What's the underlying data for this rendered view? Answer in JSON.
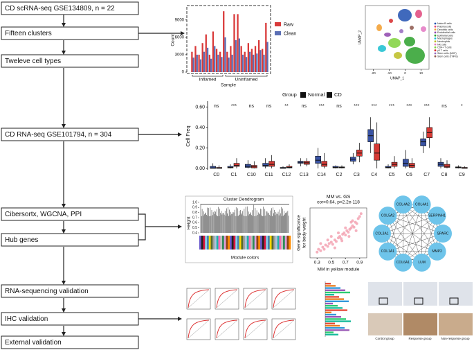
{
  "flowchart": {
    "steps": [
      "CD scRNA-seq GSE134809, n = 22",
      "Fifteen clusters",
      "Tweleve cell types",
      "CD RNA-seq GSE101794, n = 304",
      "Cibersortx, WGCNA, PPI",
      "Hub genes",
      "RNA-sequencing validation",
      "IHC validation",
      "External validation"
    ]
  },
  "chart_data": [
    {
      "type": "bar",
      "xlabel": "Sample",
      "ylabel": "Count",
      "groups": [
        "Inflamed",
        "Uninflamed"
      ],
      "ylim": [
        0,
        11000
      ],
      "yticks": [
        0,
        3000,
        6000,
        9000
      ],
      "series": [
        {
          "name": "Raw",
          "color": "#d93a3a",
          "values": [
            3500,
            4500,
            3000,
            5000,
            6500,
            3000,
            7000,
            4000,
            3500,
            10500,
            3500,
            4500,
            10000,
            10000,
            4500,
            3500,
            5000,
            4000,
            4500,
            5500,
            4000,
            8500
          ]
        },
        {
          "name": "Clean",
          "color": "#5b6fb5",
          "values": [
            2500,
            3000,
            2200,
            3500,
            4200,
            2300,
            4500,
            3000,
            2600,
            6000,
            2500,
            3000,
            5500,
            5800,
            3000,
            2600,
            3500,
            3000,
            3200,
            3800,
            3000,
            5200
          ]
        }
      ]
    },
    {
      "type": "umap",
      "xlabel": "UMAP_1",
      "ylabel": "UMAP_2",
      "xlim": [
        -25,
        15
      ],
      "xticks": [
        -20,
        -10,
        0,
        10
      ],
      "legend": [
        "Naive B cells",
        "Plasma cells",
        "Dendritic cells",
        "Endothelial cells",
        "Epithelial cells",
        "Macrophages",
        "Neutrophils",
        "NK cells",
        "CD4+ T cells",
        "γδ T cells",
        "Stem cells (MHF)",
        "Stem cells (TNFG)"
      ],
      "colors": [
        "#1f4fb0",
        "#e0457b",
        "#f29c2b",
        "#8e44ad",
        "#2ca02c",
        "#17becf",
        "#bcbd22",
        "#e377c2",
        "#7fd13b",
        "#d62728",
        "#9467bd",
        "#8c564b"
      ]
    },
    {
      "type": "box",
      "title": "Group",
      "ylabel": "Cell Freq",
      "ylim": [
        0,
        0.63
      ],
      "yticks": [
        {
          "value": 0,
          "label": "0.00"
        },
        {
          "value": 0.2,
          "label": "0.20"
        },
        {
          "value": 0.4,
          "label": "0.40"
        },
        {
          "value": 0.6,
          "label": "0.60"
        }
      ],
      "categories": [
        "C0",
        "C1",
        "C10",
        "C11",
        "C12",
        "C13",
        "C14",
        "C2",
        "C3",
        "C4",
        "C5",
        "C6",
        "C7",
        "C8",
        "C9"
      ],
      "significance": [
        "ns",
        "***",
        "ns",
        "ns",
        "**",
        "ns",
        "***",
        "ns",
        "***",
        "***",
        "***",
        "***",
        "***",
        "ns",
        "*"
      ],
      "series": [
        {
          "name": "Normal",
          "color": "#3953a4",
          "values": [
            [
              0,
              0,
              0.005,
              0.02,
              0.05
            ],
            [
              0,
              0.005,
              0.01,
              0.02,
              0.04
            ],
            [
              0,
              0.01,
              0.02,
              0.04,
              0.08
            ],
            [
              0,
              0.02,
              0.03,
              0.05,
              0.1
            ],
            [
              0,
              0,
              0.005,
              0.01,
              0.02
            ],
            [
              0.02,
              0.05,
              0.06,
              0.07,
              0.1
            ],
            [
              0,
              0.05,
              0.08,
              0.12,
              0.2
            ],
            [
              0,
              0.005,
              0.01,
              0.02,
              0.03
            ],
            [
              0.04,
              0.07,
              0.09,
              0.11,
              0.15
            ],
            [
              0.15,
              0.26,
              0.32,
              0.38,
              0.5
            ],
            [
              0,
              0.005,
              0.01,
              0.02,
              0.04
            ],
            [
              0,
              0.02,
              0.05,
              0.09,
              0.18
            ],
            [
              0.15,
              0.22,
              0.26,
              0.29,
              0.36
            ],
            [
              0,
              0.02,
              0.04,
              0.06,
              0.1
            ],
            [
              0,
              0.005,
              0.01,
              0.015,
              0.03
            ]
          ]
        },
        {
          "name": "CD",
          "color": "#d63a35",
          "values": [
            [
              0,
              0,
              0.003,
              0.01,
              0.03
            ],
            [
              0,
              0.02,
              0.03,
              0.05,
              0.1
            ],
            [
              0,
              0.005,
              0.015,
              0.03,
              0.07
            ],
            [
              0,
              0.02,
              0.04,
              0.07,
              0.13
            ],
            [
              0,
              0.005,
              0.01,
              0.02,
              0.04
            ],
            [
              0.02,
              0.04,
              0.055,
              0.07,
              0.1
            ],
            [
              0,
              0.02,
              0.04,
              0.07,
              0.15
            ],
            [
              0,
              0.005,
              0.01,
              0.015,
              0.03
            ],
            [
              0.06,
              0.12,
              0.15,
              0.18,
              0.25
            ],
            [
              0,
              0.08,
              0.15,
              0.24,
              0.45
            ],
            [
              0,
              0.02,
              0.04,
              0.06,
              0.12
            ],
            [
              0,
              0.01,
              0.03,
              0.05,
              0.1
            ],
            [
              0.2,
              0.3,
              0.35,
              0.4,
              0.5
            ],
            [
              0,
              0.01,
              0.02,
              0.04,
              0.08
            ],
            [
              0,
              0,
              0.005,
              0.01,
              0.02
            ]
          ]
        }
      ]
    },
    {
      "type": "dendrogram",
      "title": "Cluster Dendrogram",
      "ylabel": "Height",
      "xlabel": "Module colors",
      "ylim": [
        0.4,
        1
      ],
      "yticks": [
        0.4,
        0.5,
        0.6,
        0.7,
        0.8,
        0.9,
        {
          "value": 1,
          "label": "1.0"
        }
      ]
    },
    {
      "type": "scatter",
      "title": "MM vs. GS",
      "subtitle": "cor=0.64, p=2.2e-118",
      "xlabel": "MM in yellow module",
      "ylabel": [
        "Gene significance",
        "for body weight"
      ],
      "color": "#f3a3b3",
      "xlim": [
        0.2,
        1.0
      ],
      "ylim": [
        0,
        0.7
      ],
      "xticks": [
        0.3,
        0.5,
        0.7,
        0.9
      ],
      "x": [
        0.3,
        0.32,
        0.35,
        0.38,
        0.4,
        0.42,
        0.45,
        0.47,
        0.5,
        0.52,
        0.55,
        0.57,
        0.6,
        0.62,
        0.64,
        0.66,
        0.68,
        0.7,
        0.72,
        0.74,
        0.76,
        0.78,
        0.8,
        0.82,
        0.84,
        0.86,
        0.88,
        0.9,
        0.5,
        0.6,
        0.7,
        0.8,
        0.65,
        0.75,
        0.85,
        0.45,
        0.55,
        0.92,
        0.35,
        0.78
      ],
      "y": [
        0.08,
        0.12,
        0.1,
        0.15,
        0.12,
        0.18,
        0.16,
        0.2,
        0.22,
        0.19,
        0.25,
        0.23,
        0.28,
        0.3,
        0.27,
        0.33,
        0.35,
        0.32,
        0.38,
        0.36,
        0.4,
        0.42,
        0.45,
        0.43,
        0.5,
        0.48,
        0.55,
        0.58,
        0.3,
        0.35,
        0.42,
        0.52,
        0.24,
        0.3,
        0.38,
        0.25,
        0.14,
        0.62,
        0.2,
        0.5
      ]
    }
  ],
  "network": {
    "nodes": [
      "COL4A2",
      "COL4A1",
      "SERPINH1",
      "SPARC",
      "MMP2",
      "LUM",
      "COL6A1",
      "COL1A1",
      "COL3A1",
      "COL5A2"
    ]
  },
  "ihc": {
    "groups": [
      "Control group",
      "Response group",
      "Non-response group"
    ]
  }
}
